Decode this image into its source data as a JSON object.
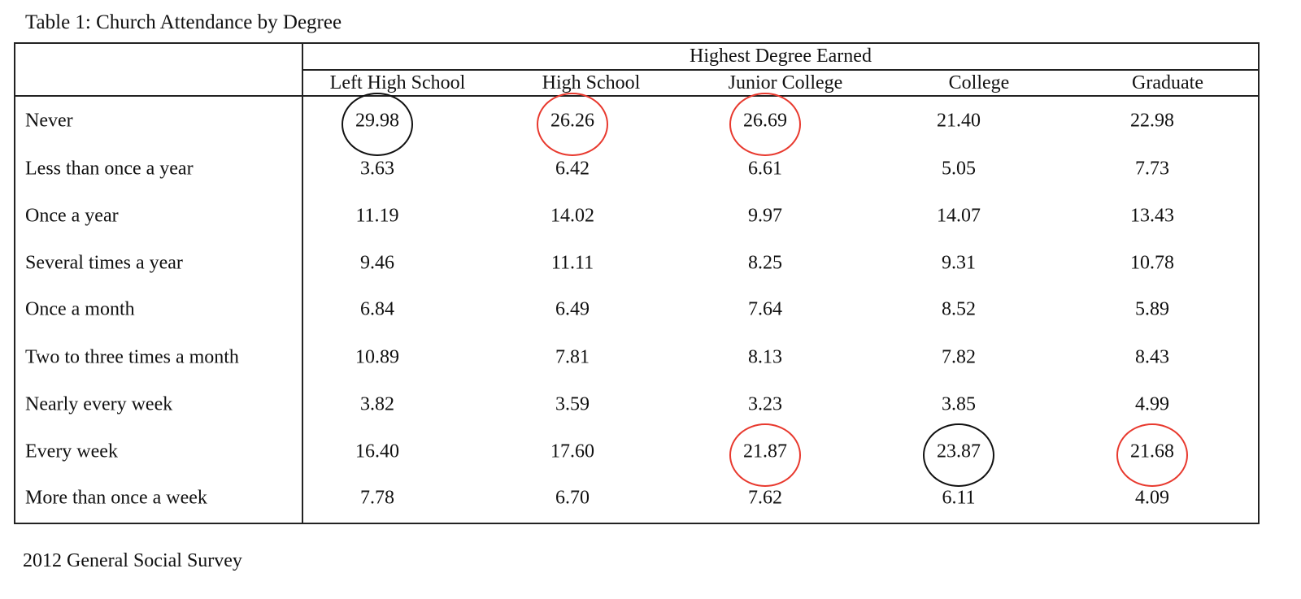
{
  "title": "Table 1: Church Attendance by Degree",
  "group_header": "Highest Degree Earned",
  "columns": [
    "Left High School",
    "High School",
    "Junior College",
    "College",
    "Graduate"
  ],
  "rows": [
    {
      "label": "Never",
      "values": [
        "29.98",
        "26.26",
        "26.69",
        "21.40",
        "22.98"
      ]
    },
    {
      "label": "Less than once a year",
      "values": [
        "3.63",
        "6.42",
        "6.61",
        "5.05",
        "7.73"
      ]
    },
    {
      "label": "Once a year",
      "values": [
        "11.19",
        "14.02",
        "9.97",
        "14.07",
        "13.43"
      ]
    },
    {
      "label": "Several times a year",
      "values": [
        "9.46",
        "11.11",
        "8.25",
        "9.31",
        "10.78"
      ]
    },
    {
      "label": "Once a month",
      "values": [
        "6.84",
        "6.49",
        "7.64",
        "8.52",
        "5.89"
      ]
    },
    {
      "label": "Two to three times a month",
      "values": [
        "10.89",
        "7.81",
        "8.13",
        "7.82",
        "8.43"
      ]
    },
    {
      "label": "Nearly every week",
      "values": [
        "3.82",
        "3.59",
        "3.23",
        "3.85",
        "4.99"
      ]
    },
    {
      "label": "Every week",
      "values": [
        "16.40",
        "17.60",
        "21.87",
        "23.87",
        "21.68"
      ]
    },
    {
      "label": "More than once a week",
      "values": [
        "7.78",
        "6.70",
        "7.62",
        "6.11",
        "4.09"
      ]
    }
  ],
  "circle_marks": [
    {
      "row": 0,
      "col": 0,
      "color": "#111111"
    },
    {
      "row": 0,
      "col": 1,
      "color": "#e8392e"
    },
    {
      "row": 0,
      "col": 2,
      "color": "#e8392e"
    },
    {
      "row": 7,
      "col": 2,
      "color": "#e8392e"
    },
    {
      "row": 7,
      "col": 3,
      "color": "#111111"
    },
    {
      "row": 7,
      "col": 4,
      "color": "#e8392e"
    }
  ],
  "footer": "2012 General Social Survey"
}
